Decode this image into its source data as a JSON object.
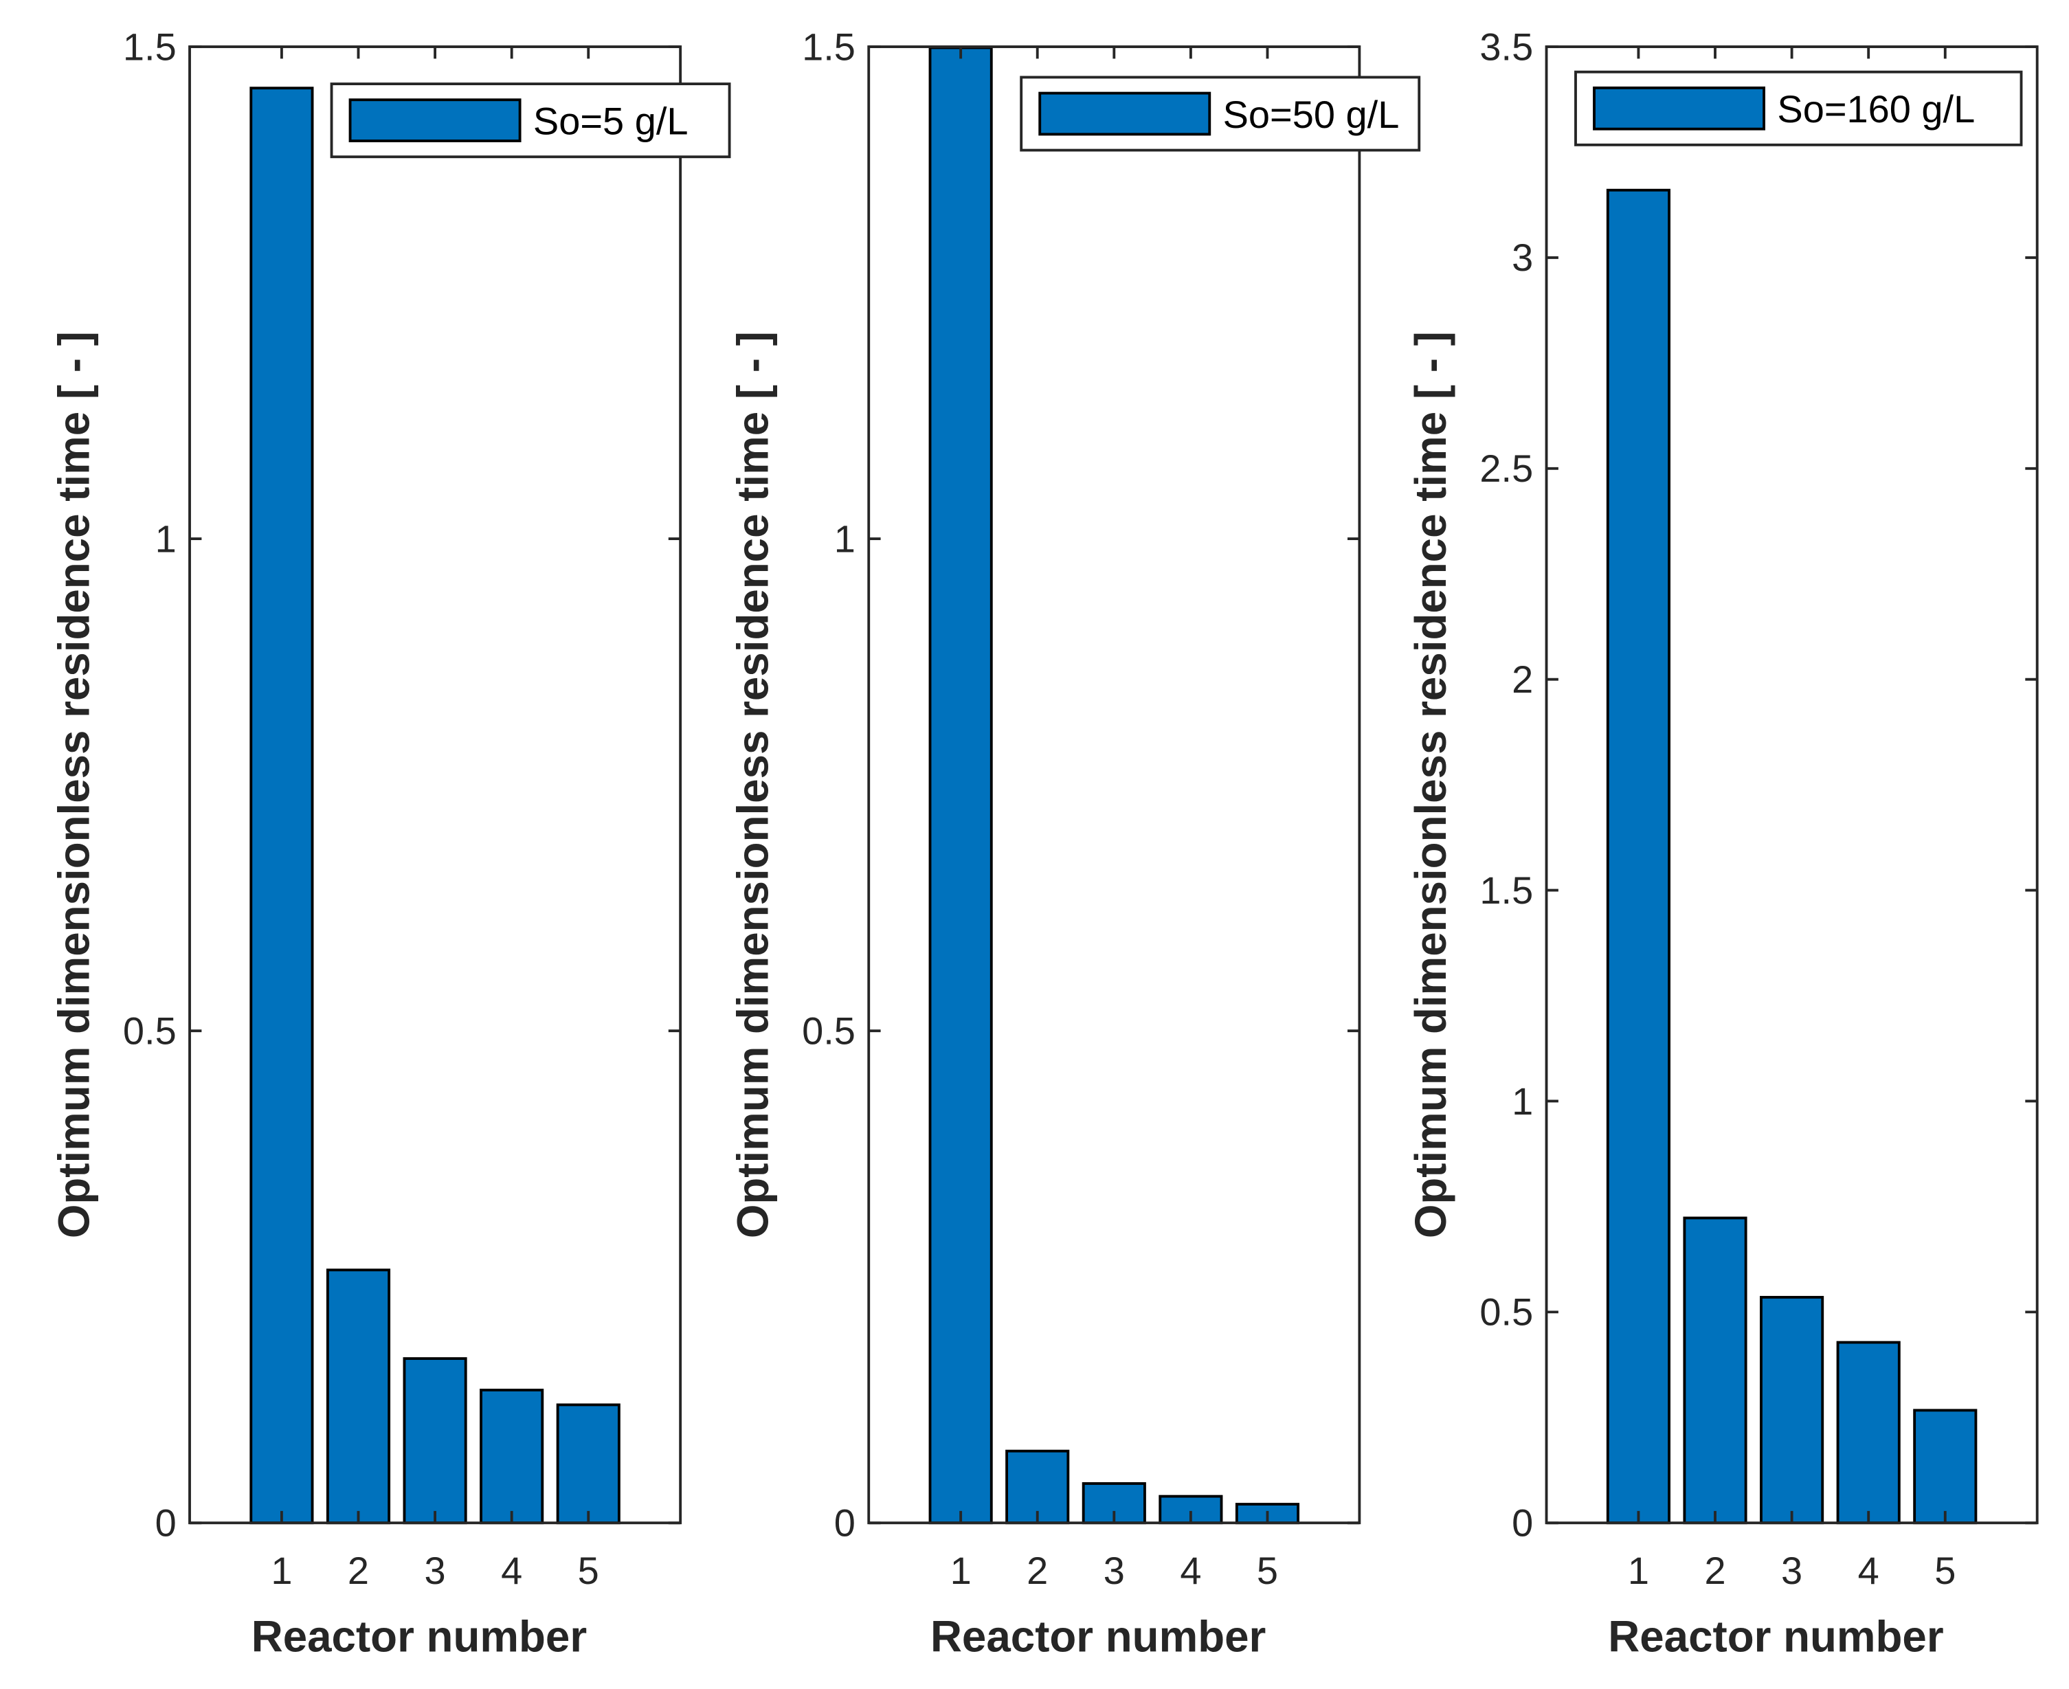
{
  "colors": {
    "bar": "#0072bd",
    "axis": "#262626"
  },
  "chart_data": [
    {
      "type": "bar",
      "categories": [
        "1",
        "2",
        "3",
        "4",
        "5"
      ],
      "values": [
        1.458,
        0.257,
        0.167,
        0.135,
        0.12
      ],
      "legend": "So=5 g/L",
      "legend_position": "top-right",
      "xlabel": "Reactor number",
      "ylabel": "Optimum dimensionless residence time [ - ]",
      "ylim": [
        0,
        1.5
      ],
      "xlim": [
        -0.2,
        6.2
      ],
      "yticks": [
        0,
        0.5,
        1,
        1.5
      ],
      "ytick_labels": [
        "0",
        "0.5",
        "1",
        "1.5"
      ],
      "grid": false
    },
    {
      "type": "bar",
      "categories": [
        "1",
        "2",
        "3",
        "4",
        "5"
      ],
      "values": [
        1.499,
        0.073,
        0.04,
        0.027,
        0.019
      ],
      "legend": "So=50 g/L",
      "legend_position": "top-right",
      "xlabel": "Reactor number",
      "ylabel": "Optimum dimensionless residence time [ - ]",
      "ylim": [
        0,
        1.5
      ],
      "xlim": [
        -0.2,
        6.2
      ],
      "yticks": [
        0,
        0.5,
        1,
        1.5
      ],
      "ytick_labels": [
        "0",
        "0.5",
        "1",
        "1.5"
      ],
      "grid": false
    },
    {
      "type": "bar",
      "categories": [
        "1",
        "2",
        "3",
        "4",
        "5"
      ],
      "values": [
        3.16,
        0.723,
        0.535,
        0.428,
        0.267
      ],
      "legend": "So=160 g/L",
      "legend_position": "top-right",
      "xlabel": "Reactor number",
      "ylabel": "Optimum dimensionless residence time [ - ]",
      "ylim": [
        0,
        3.5
      ],
      "xlim": [
        -0.2,
        6.2
      ],
      "yticks": [
        0,
        0.5,
        1,
        1.5,
        2,
        2.5,
        3,
        3.5
      ],
      "ytick_labels": [
        "0",
        "0.5",
        "1",
        "1.5",
        "2",
        "2.5",
        "3",
        "3.5"
      ],
      "grid": false
    }
  ]
}
